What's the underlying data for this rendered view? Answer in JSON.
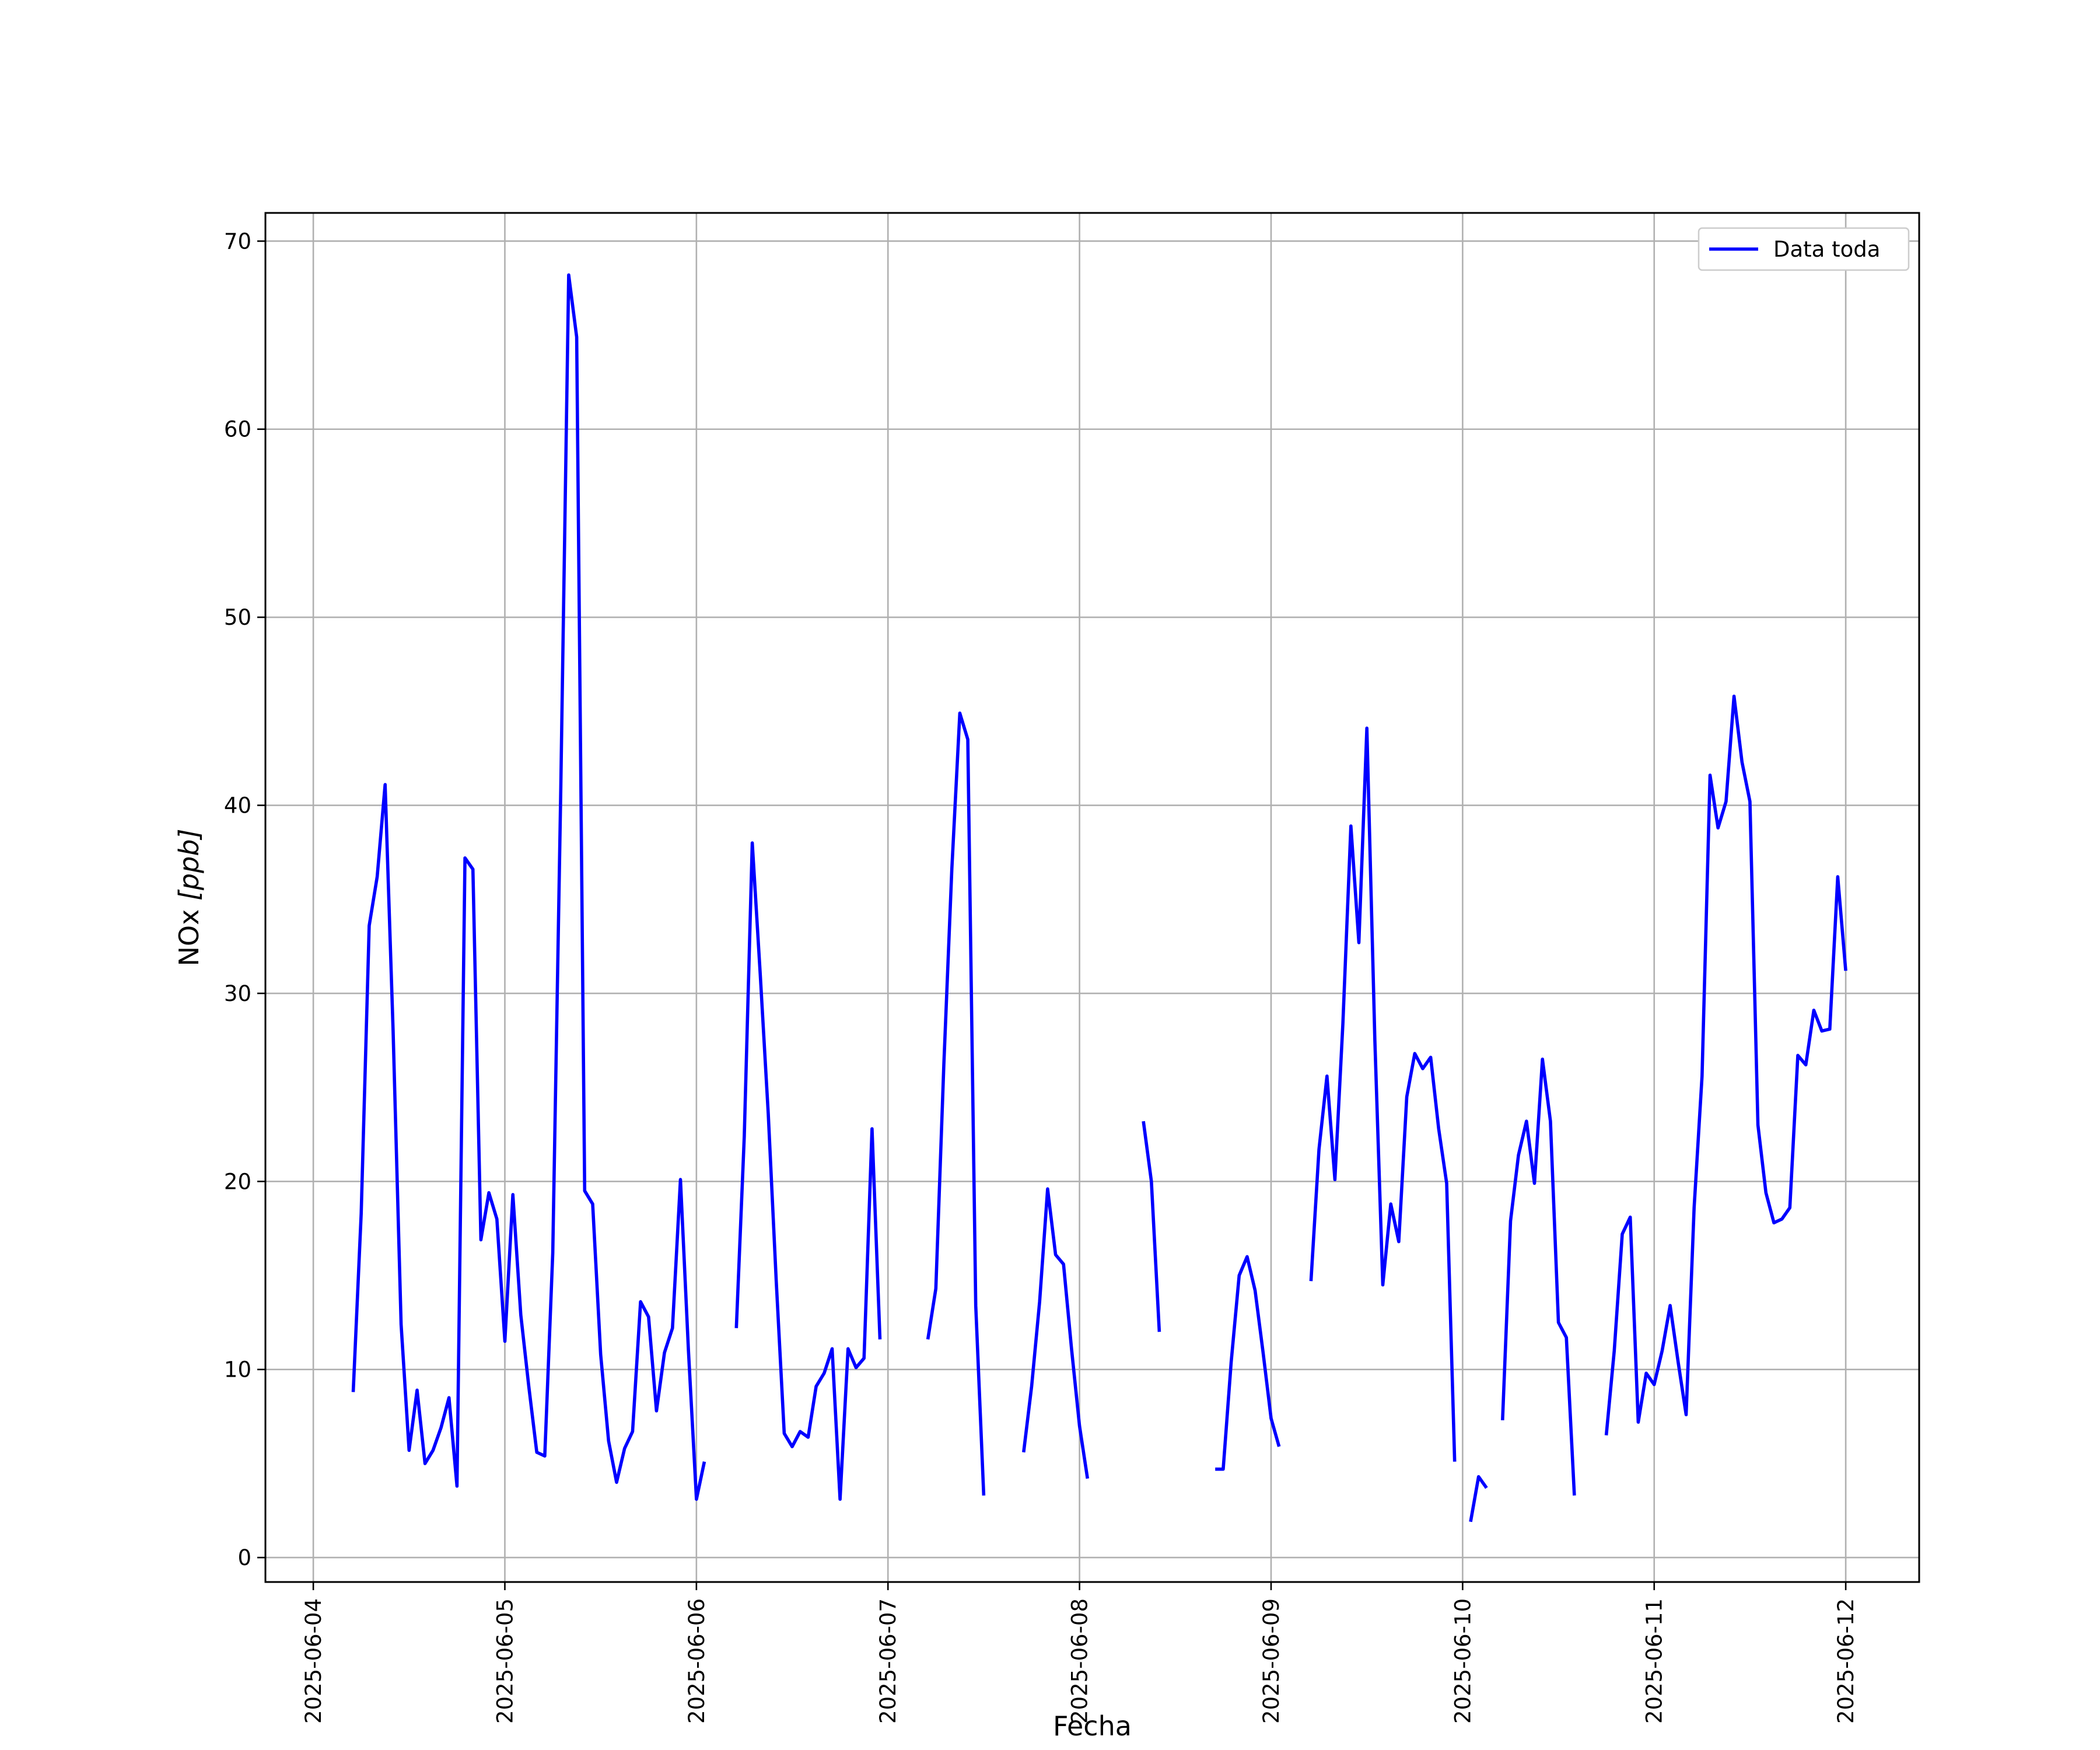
{
  "chart_data": {
    "type": "line",
    "title": "",
    "xlabel": "Fecha",
    "ylabel_text": "NOx ",
    "ylabel_unit": "[ppb]",
    "x_ticks": [
      "2025-06-04",
      "2025-06-05",
      "2025-06-06",
      "2025-06-07",
      "2025-06-08",
      "2025-06-09",
      "2025-06-10",
      "2025-06-11",
      "2025-06-12"
    ],
    "y_ticks": [
      0,
      10,
      20,
      30,
      40,
      50,
      60,
      70
    ],
    "xlim": [
      "2025-06-03 18:00",
      "2025-06-12 09:12"
    ],
    "ylim": [
      -1.3,
      71.5
    ],
    "grid": true,
    "legend_position": "top-right",
    "colors": {
      "series": "#0000ff",
      "grid": "#b0b0b0",
      "frame": "#000000"
    },
    "series": [
      {
        "name": "Data toda",
        "color": "#0000ff",
        "segments": [
          [
            [
              "2025-06-04 05:00",
              8.8
            ],
            [
              "2025-06-04 06:00",
              18.3
            ],
            [
              "2025-06-04 07:00",
              33.6
            ],
            [
              "2025-06-04 08:00",
              36.2
            ],
            [
              "2025-06-04 09:00",
              41.1
            ],
            [
              "2025-06-04 10:00",
              28.0
            ],
            [
              "2025-06-04 11:00",
              12.4
            ],
            [
              "2025-06-04 12:00",
              5.7
            ],
            [
              "2025-06-04 13:00",
              8.9
            ],
            [
              "2025-06-04 14:00",
              5.0
            ],
            [
              "2025-06-04 15:00",
              5.7
            ],
            [
              "2025-06-04 16:00",
              6.9
            ],
            [
              "2025-06-04 17:00",
              8.5
            ],
            [
              "2025-06-04 18:00",
              3.8
            ],
            [
              "2025-06-04 19:00",
              37.2
            ],
            [
              "2025-06-04 20:00",
              36.6
            ],
            [
              "2025-06-04 21:00",
              16.9
            ],
            [
              "2025-06-04 22:00",
              19.4
            ],
            [
              "2025-06-04 23:00",
              18.0
            ],
            [
              "2025-06-05 00:00",
              11.5
            ],
            [
              "2025-06-05 01:00",
              19.3
            ],
            [
              "2025-06-05 02:00",
              12.9
            ],
            [
              "2025-06-05 03:00",
              9.1
            ],
            [
              "2025-06-05 04:00",
              5.6
            ],
            [
              "2025-06-05 05:00",
              5.4
            ],
            [
              "2025-06-05 06:00",
              16.2
            ],
            [
              "2025-06-05 07:00",
              40.8
            ],
            [
              "2025-06-05 08:00",
              68.2
            ],
            [
              "2025-06-05 09:00",
              64.9
            ],
            [
              "2025-06-05 10:00",
              19.5
            ],
            [
              "2025-06-05 11:00",
              18.8
            ],
            [
              "2025-06-05 12:00",
              10.8
            ],
            [
              "2025-06-05 13:00",
              6.2
            ],
            [
              "2025-06-05 14:00",
              4.0
            ],
            [
              "2025-06-05 15:00",
              5.8
            ],
            [
              "2025-06-05 16:00",
              6.7
            ],
            [
              "2025-06-05 17:00",
              13.6
            ],
            [
              "2025-06-05 18:00",
              12.8
            ],
            [
              "2025-06-05 19:00",
              7.8
            ],
            [
              "2025-06-05 20:00",
              10.9
            ],
            [
              "2025-06-05 21:00",
              12.2
            ],
            [
              "2025-06-05 22:00",
              20.1
            ],
            [
              "2025-06-05 23:00",
              11.0
            ],
            [
              "2025-06-06 00:00",
              3.1
            ],
            [
              "2025-06-06 01:00",
              5.1
            ]
          ],
          [
            [
              "2025-06-06 05:00",
              12.2
            ],
            [
              "2025-06-06 06:00",
              22.4
            ],
            [
              "2025-06-06 07:00",
              38.0
            ],
            [
              "2025-06-06 08:00",
              31.0
            ],
            [
              "2025-06-06 09:00",
              23.6
            ],
            [
              "2025-06-06 10:00",
              14.7
            ],
            [
              "2025-06-06 11:00",
              6.6
            ],
            [
              "2025-06-06 12:00",
              5.9
            ],
            [
              "2025-06-06 13:00",
              6.7
            ],
            [
              "2025-06-06 14:00",
              6.4
            ],
            [
              "2025-06-06 15:00",
              9.1
            ],
            [
              "2025-06-06 16:00",
              9.8
            ],
            [
              "2025-06-06 17:00",
              11.1
            ],
            [
              "2025-06-06 18:00",
              3.1
            ],
            [
              "2025-06-06 19:00",
              11.1
            ],
            [
              "2025-06-06 20:00",
              10.1
            ],
            [
              "2025-06-06 21:00",
              10.6
            ],
            [
              "2025-06-06 22:00",
              22.8
            ],
            [
              "2025-06-06 23:00",
              11.6
            ]
          ],
          [
            [
              "2025-06-07 05:00",
              11.6
            ],
            [
              "2025-06-07 06:00",
              14.3
            ],
            [
              "2025-06-07 07:00",
              26.2
            ],
            [
              "2025-06-07 08:00",
              36.6
            ],
            [
              "2025-06-07 09:00",
              44.9
            ],
            [
              "2025-06-07 10:00",
              43.5
            ],
            [
              "2025-06-07 11:00",
              13.4
            ],
            [
              "2025-06-07 12:00",
              3.3
            ]
          ],
          [
            [
              "2025-06-07 17:00",
              5.6
            ],
            [
              "2025-06-07 18:00",
              9.1
            ],
            [
              "2025-06-07 19:00",
              13.6
            ],
            [
              "2025-06-07 20:00",
              19.6
            ],
            [
              "2025-06-07 21:00",
              16.1
            ],
            [
              "2025-06-07 22:00",
              15.6
            ],
            [
              "2025-06-07 23:00",
              11.1
            ],
            [
              "2025-06-08 00:00",
              7.0
            ],
            [
              "2025-06-08 01:00",
              4.2
            ]
          ],
          [
            [
              "2025-06-08 08:00",
              23.2
            ],
            [
              "2025-06-08 09:00",
              20.0
            ],
            [
              "2025-06-08 10:00",
              12.0
            ]
          ],
          [
            [
              "2025-06-08 17:00",
              4.7
            ],
            [
              "2025-06-08 18:00",
              4.7
            ],
            [
              "2025-06-08 19:00",
              10.4
            ],
            [
              "2025-06-08 20:00",
              15.0
            ],
            [
              "2025-06-08 21:00",
              16.0
            ],
            [
              "2025-06-08 22:00",
              14.2
            ],
            [
              "2025-06-08 23:00",
              10.9
            ],
            [
              "2025-06-09 00:00",
              7.4
            ],
            [
              "2025-06-09 01:00",
              5.9
            ]
          ],
          [
            [
              "2025-06-09 05:00",
              14.7
            ],
            [
              "2025-06-09 06:00",
              21.7
            ],
            [
              "2025-06-09 07:00",
              25.6
            ],
            [
              "2025-06-09 08:00",
              20.1
            ],
            [
              "2025-06-09 09:00",
              28.4
            ],
            [
              "2025-06-09 10:00",
              38.9
            ],
            [
              "2025-06-09 11:00",
              32.7
            ],
            [
              "2025-06-09 12:00",
              44.1
            ],
            [
              "2025-06-09 13:00",
              27.5
            ],
            [
              "2025-06-09 14:00",
              14.5
            ],
            [
              "2025-06-09 15:00",
              18.8
            ],
            [
              "2025-06-09 16:00",
              16.8
            ],
            [
              "2025-06-09 17:00",
              24.5
            ],
            [
              "2025-06-09 18:00",
              26.8
            ],
            [
              "2025-06-09 19:00",
              26.0
            ],
            [
              "2025-06-09 20:00",
              26.6
            ],
            [
              "2025-06-09 21:00",
              22.8
            ],
            [
              "2025-06-09 22:00",
              19.9
            ],
            [
              "2025-06-09 23:00",
              5.1
            ]
          ],
          [
            [
              "2025-06-10 01:00",
              1.9
            ],
            [
              "2025-06-10 02:00",
              4.3
            ],
            [
              "2025-06-10 03:00",
              3.7
            ]
          ],
          [
            [
              "2025-06-10 05:00",
              7.3
            ],
            [
              "2025-06-10 06:00",
              17.9
            ],
            [
              "2025-06-10 07:00",
              21.4
            ],
            [
              "2025-06-10 08:00",
              23.2
            ],
            [
              "2025-06-10 09:00",
              19.9
            ],
            [
              "2025-06-10 10:00",
              26.5
            ],
            [
              "2025-06-10 11:00",
              23.2
            ],
            [
              "2025-06-10 12:00",
              12.5
            ],
            [
              "2025-06-10 13:00",
              11.7
            ],
            [
              "2025-06-10 14:00",
              3.3
            ]
          ],
          [
            [
              "2025-06-10 18:00",
              6.5
            ],
            [
              "2025-06-10 19:00",
              11.0
            ],
            [
              "2025-06-10 20:00",
              17.2
            ],
            [
              "2025-06-10 21:00",
              18.1
            ],
            [
              "2025-06-10 22:00",
              7.2
            ],
            [
              "2025-06-10 23:00",
              9.8
            ],
            [
              "2025-06-11 00:00",
              9.2
            ],
            [
              "2025-06-11 01:00",
              11.0
            ],
            [
              "2025-06-11 02:00",
              13.4
            ],
            [
              "2025-06-11 03:00",
              10.4
            ],
            [
              "2025-06-11 04:00",
              7.6
            ],
            [
              "2025-06-11 05:00",
              18.6
            ],
            [
              "2025-06-11 06:00",
              25.6
            ],
            [
              "2025-06-11 07:00",
              41.6
            ],
            [
              "2025-06-11 08:00",
              38.8
            ],
            [
              "2025-06-11 09:00",
              40.2
            ],
            [
              "2025-06-11 10:00",
              45.8
            ],
            [
              "2025-06-11 11:00",
              42.3
            ],
            [
              "2025-06-11 12:00",
              40.2
            ],
            [
              "2025-06-11 13:00",
              23.0
            ],
            [
              "2025-06-11 14:00",
              19.4
            ],
            [
              "2025-06-11 15:00",
              17.8
            ],
            [
              "2025-06-11 16:00",
              18.0
            ],
            [
              "2025-06-11 17:00",
              18.6
            ],
            [
              "2025-06-11 18:00",
              26.7
            ],
            [
              "2025-06-11 19:00",
              26.2
            ],
            [
              "2025-06-11 20:00",
              29.1
            ],
            [
              "2025-06-11 21:00",
              28.0
            ],
            [
              "2025-06-11 22:00",
              28.1
            ],
            [
              "2025-06-11 23:00",
              36.2
            ],
            [
              "2025-06-12 00:00",
              31.2
            ]
          ]
        ]
      }
    ]
  }
}
